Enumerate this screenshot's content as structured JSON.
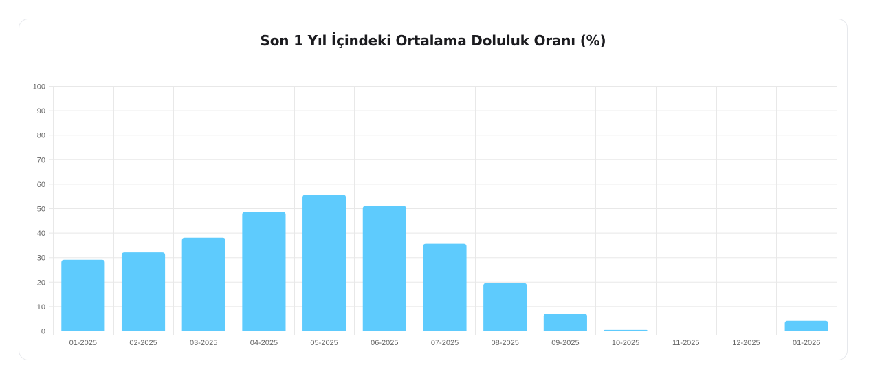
{
  "chart_data": {
    "type": "bar",
    "title": "Son 1 Yıl İçindeki Ortalama Doluluk Oranı (%)",
    "xlabel": "",
    "ylabel": "",
    "categories": [
      "01-2025",
      "02-2025",
      "03-2025",
      "04-2025",
      "05-2025",
      "06-2025",
      "07-2025",
      "08-2025",
      "09-2025",
      "10-2025",
      "11-2025",
      "12-2025",
      "01-2026"
    ],
    "values": [
      29,
      32,
      38,
      48.5,
      55.5,
      51,
      35.5,
      19.5,
      7,
      0.3,
      0,
      0,
      4
    ],
    "ylim": [
      0,
      100
    ],
    "yticks": [
      0,
      10,
      20,
      30,
      40,
      50,
      60,
      70,
      80,
      90,
      100
    ],
    "grid": true,
    "legend": "none",
    "bar_color": "#5ecbfd",
    "grid_color": "#e8e8e8"
  }
}
